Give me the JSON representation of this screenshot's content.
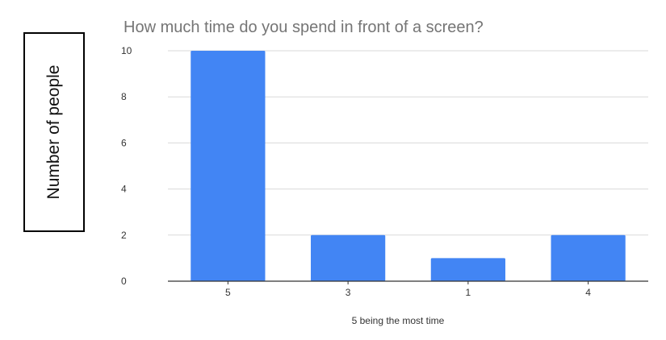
{
  "chart_data": {
    "type": "bar",
    "title": "How much time do you spend in front of a screen?",
    "xlabel": "5 being the most time",
    "ylabel": "Number of people",
    "categories": [
      "5",
      "3",
      "1",
      "4"
    ],
    "values": [
      10,
      2,
      1,
      2
    ],
    "ylim": [
      0,
      10
    ],
    "yticks": [
      0,
      2,
      4,
      6,
      8,
      10
    ],
    "grid": true,
    "bar_color": "#4285f4",
    "grid_color": "#d9d9d9",
    "axis_color": "#333333",
    "title_color": "#757575"
  }
}
